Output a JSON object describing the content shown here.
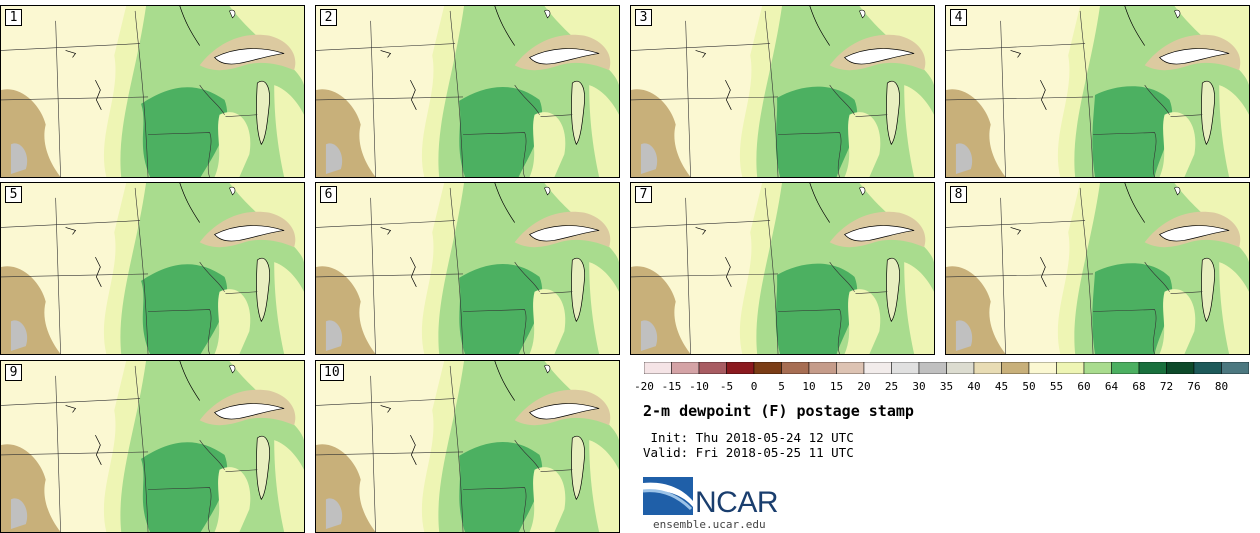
{
  "panels": [
    {
      "label": "1"
    },
    {
      "label": "2"
    },
    {
      "label": "3"
    },
    {
      "label": "4"
    },
    {
      "label": "5"
    },
    {
      "label": "6"
    },
    {
      "label": "7"
    },
    {
      "label": "8"
    },
    {
      "label": "9"
    },
    {
      "label": "10"
    }
  ],
  "colorbar": {
    "colors": [
      "#f5e4e6",
      "#d4a3a6",
      "#a85c62",
      "#8b1a1f",
      "#7b3d16",
      "#a76e53",
      "#c59c8a",
      "#ddc3b3",
      "#f2eceb",
      "#e0e0e0",
      "#c0c0c0",
      "#dcdcd0",
      "#e8dcb4",
      "#c8b07a",
      "#fbf8d2",
      "#eef5b4",
      "#a9dc8e",
      "#4cb061",
      "#19703d",
      "#0d4a2a",
      "#1e5a5a",
      "#4c7880"
    ],
    "tick_labels": [
      "-20",
      "-15",
      "-10",
      "-5",
      "0",
      "5",
      "10",
      "15",
      "20",
      "25",
      "30",
      "35",
      "40",
      "45",
      "50",
      "55",
      "60",
      "64",
      "68",
      "72",
      "76",
      "80"
    ]
  },
  "title": "2-m dewpoint (F) postage stamp",
  "init": " Init: Thu 2018-05-24 12 UTC",
  "valid": "Valid: Fri 2018-05-25 11 UTC",
  "logo": {
    "text": "NCAR",
    "site": "ensemble.ucar.edu"
  },
  "map_colors": {
    "pale": "#fbf8d2",
    "light": "#eef5b4",
    "mid": "#a9dc8e",
    "dark": "#4cb061",
    "tan": "#c8b07a",
    "lighttan": "#dccaa0",
    "gray": "#c0c0c0",
    "lake": "#e8efc0"
  }
}
